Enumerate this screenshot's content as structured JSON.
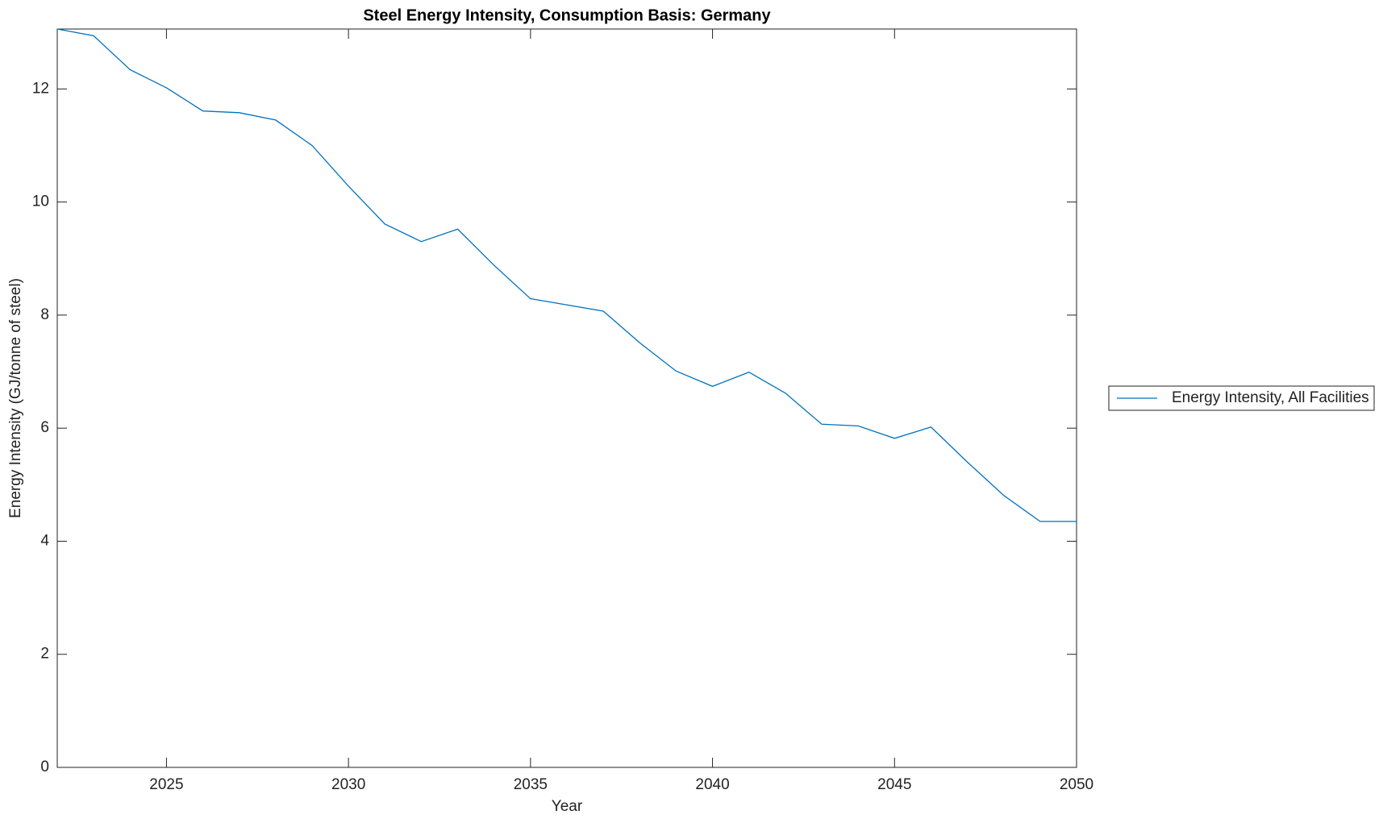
{
  "chart_data": {
    "type": "line",
    "title": "Steel Energy Intensity, Consumption Basis: Germany",
    "x_label": "Year",
    "y_label": "Energy Intensity (GJ/tonne of steel)",
    "x": [
      2022,
      2023,
      2024,
      2025,
      2026,
      2027,
      2028,
      2029,
      2030,
      2031,
      2032,
      2033,
      2034,
      2035,
      2036,
      2037,
      2038,
      2039,
      2040,
      2041,
      2042,
      2043,
      2044,
      2045,
      2046,
      2047,
      2048,
      2049,
      2050
    ],
    "series": [
      {
        "name": "Energy Intensity, All Facilities",
        "color": "#0072bd",
        "values": [
          13.06,
          12.94,
          12.34,
          12.02,
          11.61,
          11.58,
          11.45,
          11.0,
          10.28,
          9.61,
          9.3,
          9.52,
          8.88,
          8.29,
          8.18,
          8.07,
          7.51,
          7.01,
          6.74,
          6.99,
          6.62,
          6.07,
          6.04,
          5.82,
          6.02,
          5.4,
          4.81,
          4.35,
          4.35
        ]
      }
    ],
    "xlim": [
      2022,
      2050
    ],
    "xticks": [
      2025,
      2030,
      2035,
      2040,
      2045,
      2050
    ],
    "ylim": [
      0,
      13.06
    ],
    "yticks": [
      0,
      2,
      4,
      6,
      8,
      10,
      12
    ],
    "grid": false,
    "legend": "outside-right"
  }
}
